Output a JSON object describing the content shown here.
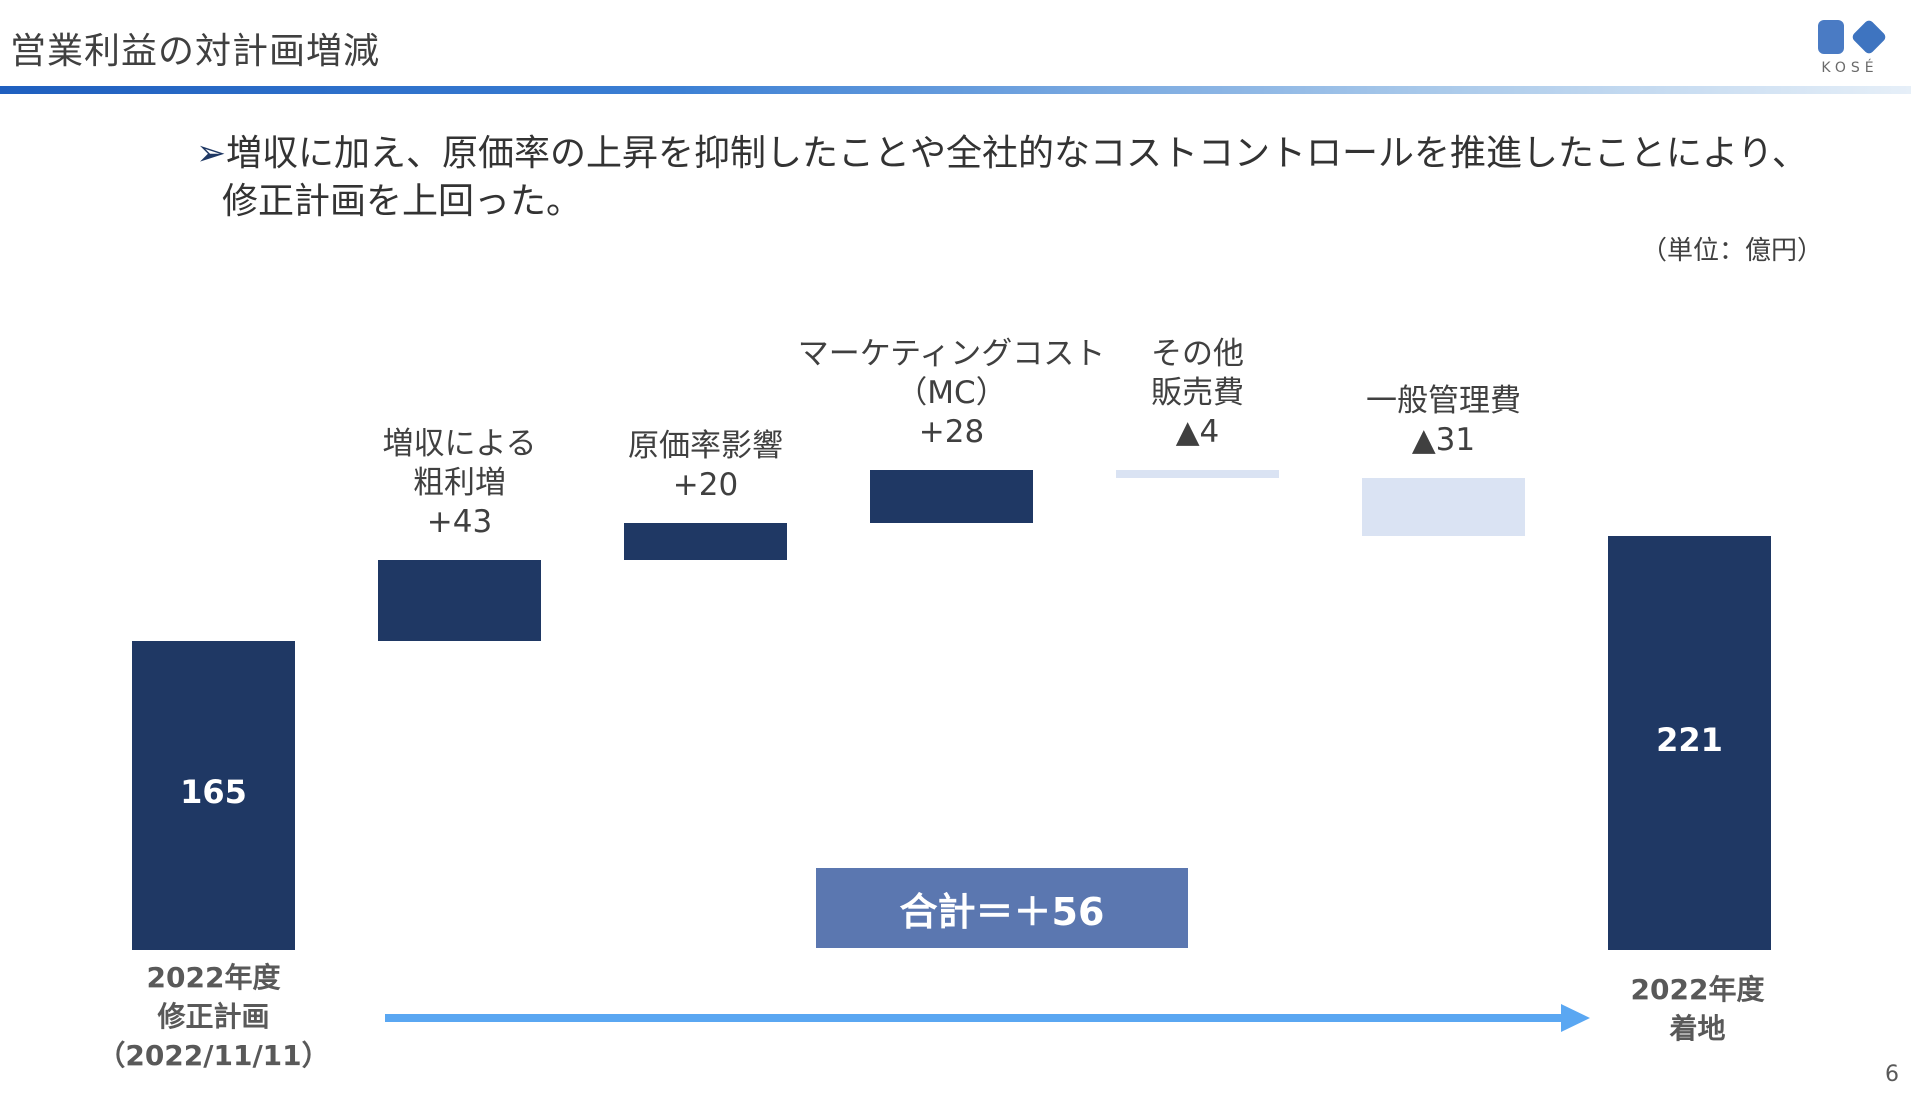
{
  "header": {
    "title": "営業利益の対計画増減",
    "logo_text": "KOSÉ",
    "accent_colors": [
      "#1f5fbf",
      "#a9c9ea"
    ]
  },
  "headline": {
    "marker": "➢",
    "line1": "増収に加え、原価率の上昇を抑制したことや全社的なコストコントロールを推進したことにより、",
    "line2": "修正計画を上回った。"
  },
  "unit_label": "（単位：億円）",
  "chart_data": {
    "type": "bar",
    "subtype": "waterfall",
    "categories": [
      "2022年度 修正計画（2022/11/11）",
      "増収による粗利増",
      "原価率影響",
      "マーケティングコスト（MC）",
      "その他販売費",
      "一般管理費",
      "2022年度 着地"
    ],
    "values": [
      165,
      43,
      20,
      28,
      -4,
      -31,
      221
    ],
    "bars": [
      {
        "kind": "total",
        "start": 0,
        "end": 165,
        "label": "165",
        "color": "#1f3864"
      },
      {
        "kind": "delta",
        "start": 165,
        "end": 208,
        "label_lines": [
          "増収による",
          "粗利増",
          "+43"
        ],
        "color": "#1f3864"
      },
      {
        "kind": "delta",
        "start": 208,
        "end": 228,
        "label_lines": [
          "原価率影響",
          "+20"
        ],
        "color": "#1f3864"
      },
      {
        "kind": "delta",
        "start": 228,
        "end": 256,
        "label_lines": [
          "マーケティングコスト",
          "（MC）",
          "+28"
        ],
        "color": "#1f3864"
      },
      {
        "kind": "delta",
        "start": 256,
        "end": 252,
        "label_lines": [
          "その他",
          "販売費",
          "▲4"
        ],
        "color": "#dae3f3"
      },
      {
        "kind": "delta",
        "start": 252,
        "end": 221,
        "label_lines": [
          "一般管理費",
          "▲31"
        ],
        "color": "#dae3f3"
      },
      {
        "kind": "total",
        "start": 0,
        "end": 221,
        "label": "221",
        "color": "#1f3864"
      }
    ],
    "end_labels": {
      "left": [
        "2022年度",
        "修正計画",
        "（2022/11/11）"
      ],
      "right": [
        "2022年度",
        "着地"
      ]
    },
    "total_change": {
      "label": "合計＝＋56",
      "value": 56,
      "color": "#5b77b0"
    },
    "arrow_color": "#5aa7f2"
  },
  "page_number": "6"
}
